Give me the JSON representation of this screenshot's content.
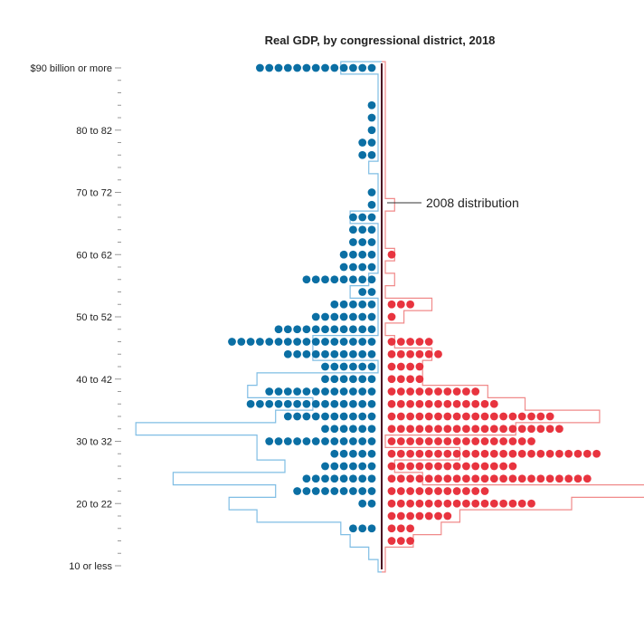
{
  "chart_data": {
    "type": "dot-histogram",
    "title": "Real GDP, by congressional district, 2018",
    "y_tick_labels": [
      "$90 billion or more",
      "80 to 82",
      "70 to 72",
      "60 to 62",
      "50 to 52",
      "40 to 42",
      "30 to 32",
      "20 to 22",
      "10 or less"
    ],
    "y_tick_values": [
      90,
      80,
      70,
      60,
      50,
      40,
      30,
      20,
      10
    ],
    "bin_width": 2,
    "bins": [
      90,
      88,
      86,
      84,
      82,
      80,
      78,
      76,
      74,
      72,
      70,
      68,
      66,
      64,
      62,
      60,
      58,
      56,
      54,
      52,
      50,
      48,
      46,
      44,
      42,
      40,
      38,
      36,
      34,
      32,
      30,
      28,
      26,
      24,
      22,
      20,
      18,
      16,
      14,
      12,
      10
    ],
    "series": [
      {
        "party": "democratic",
        "color": "#0b6fa4",
        "counts": [
          13,
          0,
          0,
          1,
          1,
          1,
          2,
          2,
          0,
          0,
          1,
          1,
          3,
          3,
          3,
          4,
          4,
          8,
          2,
          5,
          7,
          11,
          16,
          10,
          6,
          6,
          12,
          14,
          10,
          6,
          12,
          5,
          6,
          8,
          9,
          2,
          0,
          3,
          0,
          0,
          0
        ]
      },
      {
        "party": "republican",
        "color": "#e8343f",
        "counts": [
          0,
          0,
          0,
          0,
          0,
          0,
          0,
          0,
          0,
          0,
          0,
          0,
          0,
          0,
          0,
          1,
          0,
          0,
          0,
          3,
          1,
          0,
          5,
          6,
          4,
          4,
          10,
          12,
          18,
          19,
          16,
          23,
          14,
          22,
          11,
          16,
          7,
          3,
          3,
          0,
          0
        ]
      }
    ],
    "outline_2008": {
      "label": "2008 distribution",
      "democratic_counts": [
        4,
        0,
        0,
        0,
        0,
        0,
        0,
        0,
        1,
        0,
        0,
        0,
        3,
        0,
        0,
        0,
        0,
        1,
        3,
        0,
        0,
        0,
        7,
        7,
        0,
        13,
        14,
        7,
        11,
        26,
        13,
        13,
        10,
        22,
        11,
        16,
        13,
        4,
        3,
        1,
        0
      ],
      "republican_counts": [
        0,
        0,
        0,
        0,
        0,
        0,
        0,
        0,
        0,
        0,
        0,
        1,
        0,
        0,
        0,
        1,
        0,
        1,
        0,
        5,
        2,
        0,
        1,
        5,
        4,
        4,
        11,
        15,
        23,
        14,
        0,
        8,
        1,
        4,
        33,
        20,
        8,
        6,
        3,
        0,
        0
      ]
    },
    "colors": {
      "democratic": "#0b6fa4",
      "republican": "#e8343f",
      "axis_line": "#4a1022",
      "tick": "#999999"
    }
  }
}
